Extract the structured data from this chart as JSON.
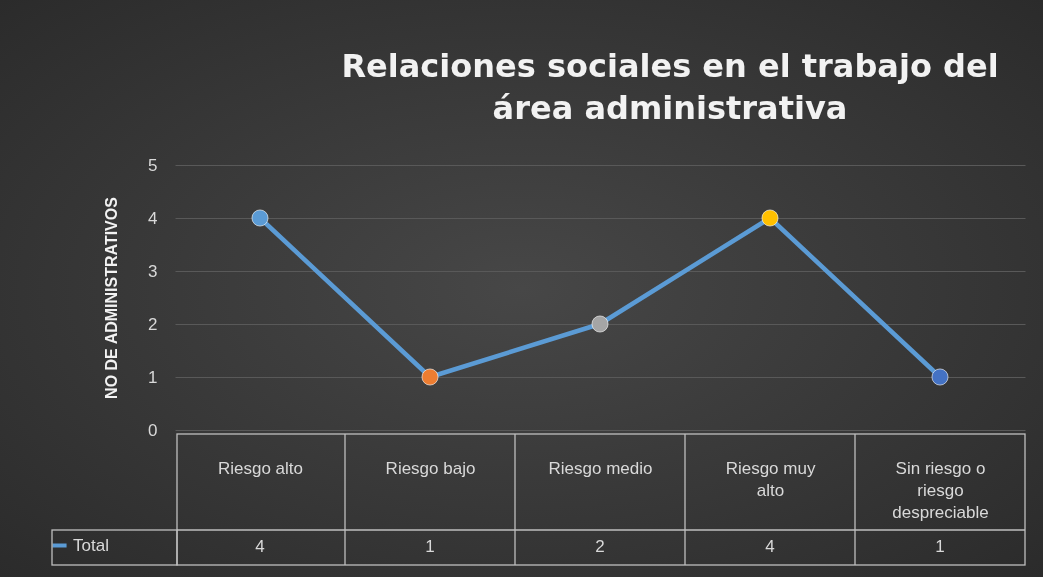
{
  "chart_data": {
    "type": "line",
    "title": "Relaciones sociales en el trabajo del área administrativa",
    "ylabel": "NO DE ADMINISTRATIVOS",
    "categories": [
      "Riesgo alto",
      "Riesgo bajo",
      "Riesgo medio",
      "Riesgo muy alto",
      "Sin riesgo o riesgo despreciable"
    ],
    "series": [
      {
        "name": "Total",
        "color": "#5b9bd5",
        "values": [
          4,
          1,
          2,
          4,
          1
        ],
        "colors": [
          "#5b9bd5",
          "#ed7d31",
          "#a5a5a5",
          "#ffc000",
          "#4472c4"
        ]
      }
    ],
    "ylim": [
      0,
      5
    ],
    "yticks": [
      0,
      1,
      2,
      3,
      4,
      5
    ],
    "grid": "y",
    "legend": "bottom",
    "data_labels": true,
    "marker": "circle",
    "line_style": "solid"
  }
}
